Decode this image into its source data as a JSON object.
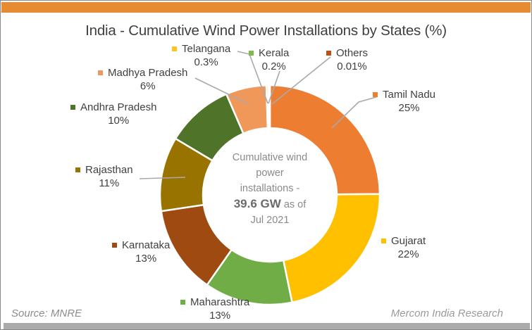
{
  "frame": {
    "top_bar_color": "#E78B32",
    "bottom_bar_color": "#ABABAB"
  },
  "title": "India - Cumulative Wind Power Installations by States (%)",
  "footer": {
    "source": "Source: MNRE",
    "credit": "Mercom India Research"
  },
  "center_label": {
    "line1": "Cumulative wind",
    "line2": "power",
    "line3": "installations -",
    "value": "39.6 GW",
    "value_suffix": "as of",
    "line4": "Jul 2021"
  },
  "chart_data": {
    "type": "pie",
    "donut": true,
    "hole_ratio": 0.61,
    "direction": "clockwise",
    "start_angle_deg": 0,
    "title": "India - Cumulative Wind Power Installations by States (%)",
    "center_text": "Cumulative wind power installations - 39.6 GW as of Jul 2021",
    "slices": [
      {
        "name": "Tamil Nadu",
        "value": 25,
        "display": "25%",
        "color": "#ED7D31"
      },
      {
        "name": "Gujarat",
        "value": 22,
        "display": "22%",
        "color": "#FFC000"
      },
      {
        "name": "Maharashtra",
        "value": 13,
        "display": "13%",
        "color": "#70AD47"
      },
      {
        "name": "Karnataka",
        "value": 13,
        "display": "13%",
        "color": "#9E4A10"
      },
      {
        "name": "Rajasthan",
        "value": 11,
        "display": "11%",
        "color": "#997300"
      },
      {
        "name": "Andhra Pradesh",
        "value": 10,
        "display": "10%",
        "color": "#4E7329"
      },
      {
        "name": "Madhya Pradesh",
        "value": 6,
        "display": "6%",
        "color": "#F0975A"
      },
      {
        "name": "Telangana",
        "value": 0.3,
        "display": "0.3%",
        "color": "#FDC428"
      },
      {
        "name": "Kerala",
        "value": 0.2,
        "display": "0.2%",
        "color": "#7FB950"
      },
      {
        "name": "Others",
        "value": 0.01,
        "display": "0.01%",
        "color": "#C0500F"
      }
    ]
  }
}
